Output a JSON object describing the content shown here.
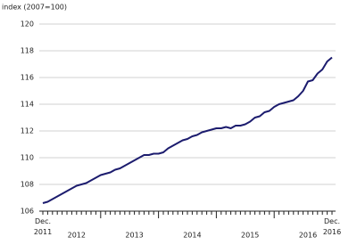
{
  "chart_data": {
    "type": "line",
    "y_label": "index (2007=100)",
    "categories": [
      "Dec. 2011",
      null,
      null,
      null,
      null,
      null,
      null,
      "2012",
      null,
      null,
      null,
      null,
      null,
      null,
      null,
      null,
      null,
      null,
      null,
      "2013",
      null,
      null,
      null,
      null,
      null,
      null,
      null,
      null,
      null,
      null,
      null,
      "2014",
      null,
      null,
      null,
      null,
      null,
      null,
      null,
      null,
      null,
      null,
      null,
      "2015",
      null,
      null,
      null,
      null,
      null,
      null,
      null,
      null,
      null,
      null,
      null,
      "2016",
      null,
      null,
      null,
      null,
      "Dec. 2016"
    ],
    "series": [
      {
        "color": "#1c1c6e",
        "values": [
          106.6,
          106.7,
          106.9,
          107.1,
          107.3,
          107.5,
          107.7,
          107.9,
          108.0,
          108.1,
          108.3,
          108.5,
          108.7,
          108.8,
          108.9,
          109.1,
          109.2,
          109.4,
          109.6,
          109.8,
          110.0,
          110.2,
          110.2,
          110.3,
          110.3,
          110.4,
          110.7,
          110.9,
          111.1,
          111.3,
          111.4,
          111.6,
          111.7,
          111.9,
          112.0,
          112.1,
          112.2,
          112.2,
          112.3,
          112.2,
          112.4,
          112.4,
          112.5,
          112.7,
          113.0,
          113.1,
          113.4,
          113.5,
          113.8,
          114.0,
          114.1,
          114.2,
          114.3,
          114.6,
          115.0,
          115.7,
          115.8,
          116.3,
          116.6,
          117.2,
          117.5
        ]
      }
    ],
    "ylim": [
      106,
      120
    ],
    "yticks": [
      106,
      108,
      110,
      112,
      114,
      116,
      118,
      120
    ],
    "grid": true
  }
}
